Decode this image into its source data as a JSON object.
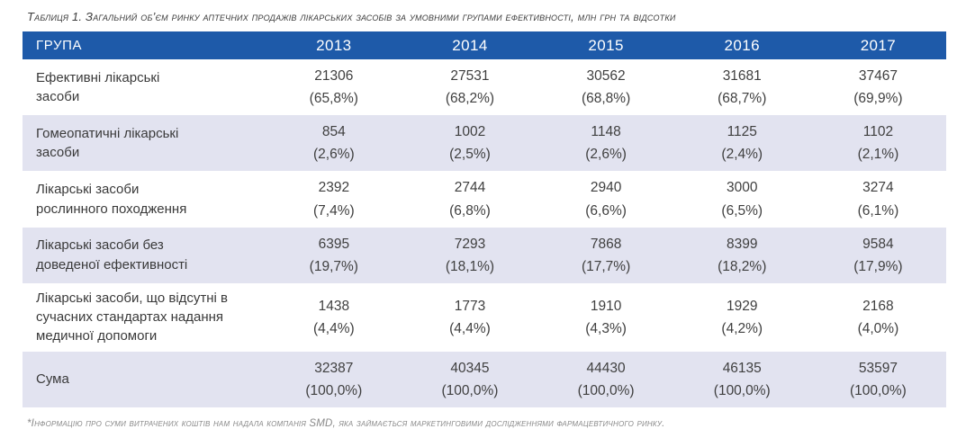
{
  "page": {
    "title": "Таблиця 1. Загальний об’єм ринку аптечних продажів лікарських засобів за умовними групами ефективності, млн грн та відсотки",
    "footnote": "*Інформацію про суми витрачених коштів нам надала компанія SMD, яка займається маркетинговими дослідженнями фармацевтичного ринку."
  },
  "colors": {
    "header_bg": "#1e5aa9",
    "header_text": "#ffffff",
    "row_alt_bg": "#e2e3f0",
    "body_text": "#3f3f3f",
    "footnote_text": "#8a8a8a"
  },
  "table": {
    "header": {
      "group_label": "ГРУПА",
      "years": [
        "2013",
        "2014",
        "2015",
        "2016",
        "2017"
      ]
    },
    "rows": [
      {
        "group": "Ефективні лікарські\nзасоби",
        "values": [
          "21306",
          "27531",
          "30562",
          "31681",
          "37467"
        ],
        "percents": [
          "(65,8%)",
          "(68,2%)",
          "(68,8%)",
          "(68,7%)",
          "(69,9%)"
        ]
      },
      {
        "group": "Гомеопатичні лікарські\nзасоби",
        "values": [
          "854",
          "1002",
          "1148",
          "1125",
          "1102"
        ],
        "percents": [
          "(2,6%)",
          "(2,5%)",
          "(2,6%)",
          "(2,4%)",
          "(2,1%)"
        ]
      },
      {
        "group": "Лікарські засоби\nрослинного походження",
        "values": [
          "2392",
          "2744",
          "2940",
          "3000",
          "3274"
        ],
        "percents": [
          "(7,4%)",
          "(6,8%)",
          "(6,6%)",
          "(6,5%)",
          "(6,1%)"
        ]
      },
      {
        "group": "Лікарські засоби без\nдоведеної ефективності",
        "values": [
          "6395",
          "7293",
          "7868",
          "8399",
          "9584"
        ],
        "percents": [
          "(19,7%)",
          "(18,1%)",
          "(17,7%)",
          "(18,2%)",
          "(17,9%)"
        ]
      },
      {
        "group": "Лікарські засоби, що відсутні в\nсучасних стандартах надання\nмедичної допомоги",
        "values": [
          "1438",
          "1773",
          "1910",
          "1929",
          "2168"
        ],
        "percents": [
          "(4,4%)",
          "(4,4%)",
          "(4,3%)",
          "(4,2%)",
          "(4,0%)"
        ]
      },
      {
        "group": "Сума",
        "values": [
          "32387",
          "40345",
          "44430",
          "46135",
          "53597"
        ],
        "percents": [
          "(100,0%)",
          "(100,0%)",
          "(100,0%)",
          "(100,0%)",
          "(100,0%)"
        ]
      }
    ]
  }
}
